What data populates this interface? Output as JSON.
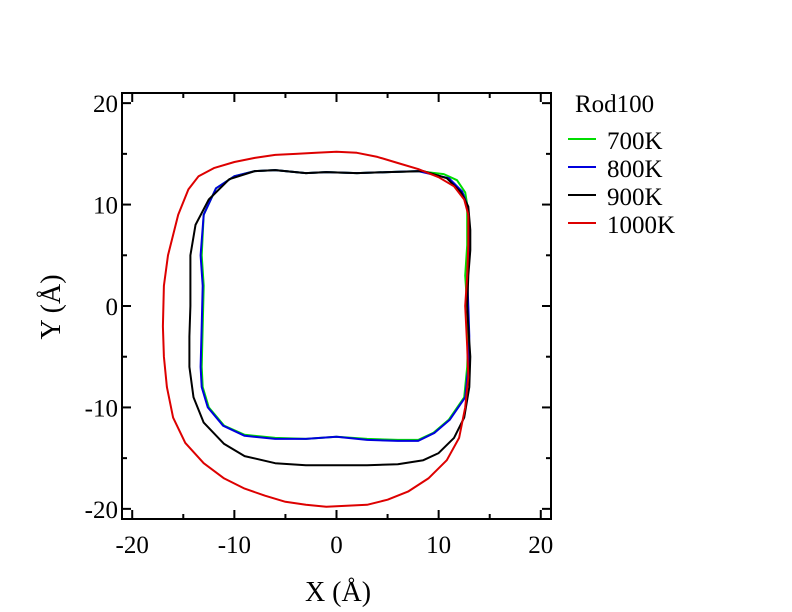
{
  "chart_data": {
    "type": "line",
    "xlabel": "X (Å)",
    "ylabel": "Y (Å)",
    "xlim": [
      -21,
      21
    ],
    "ylim": [
      -21,
      21
    ],
    "xticks": [
      -20,
      -10,
      0,
      10,
      20
    ],
    "yticks": [
      -20,
      -10,
      0,
      10,
      20
    ],
    "xtick_labels": [
      "-20",
      "-10",
      "0",
      "10",
      "20"
    ],
    "ytick_labels": [
      "-20",
      "-10",
      "0",
      "10",
      "20"
    ],
    "grid": false,
    "legend": {
      "title": "Rod100",
      "placement": "right-outside-top"
    },
    "series": [
      {
        "name": "700K",
        "color": "#00dd00",
        "points": [
          [
            12.8,
            10.0
          ],
          [
            12.6,
            11.2
          ],
          [
            11.8,
            12.4
          ],
          [
            10.5,
            13.0
          ],
          [
            8.0,
            13.3
          ],
          [
            5.0,
            13.2
          ],
          [
            2.0,
            13.1
          ],
          [
            -1.0,
            13.2
          ],
          [
            -3.0,
            13.1
          ],
          [
            -6.0,
            13.4
          ],
          [
            -8.0,
            13.3
          ],
          [
            -10.0,
            12.8
          ],
          [
            -11.8,
            11.6
          ],
          [
            -13.0,
            9.0
          ],
          [
            -13.2,
            5.0
          ],
          [
            -13.0,
            2.0
          ],
          [
            -13.1,
            -2.0
          ],
          [
            -13.2,
            -6.0
          ],
          [
            -13.1,
            -8.0
          ],
          [
            -12.5,
            -10.0
          ],
          [
            -11.0,
            -11.8
          ],
          [
            -9.0,
            -12.7
          ],
          [
            -6.0,
            -13.0
          ],
          [
            -3.0,
            -13.1
          ],
          [
            0.0,
            -12.9
          ],
          [
            3.0,
            -13.1
          ],
          [
            6.0,
            -13.2
          ],
          [
            8.0,
            -13.2
          ],
          [
            9.5,
            -12.5
          ],
          [
            11.0,
            -11.2
          ],
          [
            12.5,
            -9.0
          ],
          [
            12.8,
            -6.0
          ],
          [
            12.9,
            -3.0
          ],
          [
            12.8,
            0.0
          ],
          [
            12.6,
            3.0
          ],
          [
            12.8,
            6.0
          ],
          [
            12.8,
            10.0
          ]
        ]
      },
      {
        "name": "800K",
        "color": "#0000dd",
        "points": [
          [
            13.0,
            8.0
          ],
          [
            12.8,
            10.0
          ],
          [
            12.3,
            11.3
          ],
          [
            11.0,
            12.6
          ],
          [
            8.0,
            13.3
          ],
          [
            5.0,
            13.2
          ],
          [
            2.0,
            13.1
          ],
          [
            -1.0,
            13.2
          ],
          [
            -3.0,
            13.1
          ],
          [
            -6.0,
            13.4
          ],
          [
            -8.0,
            13.3
          ],
          [
            -10.0,
            12.8
          ],
          [
            -11.8,
            11.6
          ],
          [
            -13.0,
            9.0
          ],
          [
            -13.3,
            5.0
          ],
          [
            -13.1,
            2.0
          ],
          [
            -13.2,
            -2.0
          ],
          [
            -13.3,
            -6.0
          ],
          [
            -13.2,
            -8.0
          ],
          [
            -12.6,
            -10.0
          ],
          [
            -11.1,
            -11.8
          ],
          [
            -9.0,
            -12.8
          ],
          [
            -6.0,
            -13.1
          ],
          [
            -3.0,
            -13.1
          ],
          [
            0.0,
            -12.9
          ],
          [
            3.0,
            -13.2
          ],
          [
            6.0,
            -13.3
          ],
          [
            8.0,
            -13.3
          ],
          [
            9.6,
            -12.5
          ],
          [
            11.1,
            -11.2
          ],
          [
            12.6,
            -9.0
          ],
          [
            12.9,
            -6.0
          ],
          [
            13.0,
            -3.0
          ],
          [
            12.9,
            0.0
          ],
          [
            12.8,
            3.0
          ],
          [
            13.0,
            6.0
          ],
          [
            13.0,
            8.0
          ]
        ]
      },
      {
        "name": "900K",
        "color": "#000000",
        "points": [
          [
            13.1,
            7.5
          ],
          [
            12.9,
            9.8
          ],
          [
            12.2,
            11.2
          ],
          [
            10.8,
            12.6
          ],
          [
            8.5,
            13.3
          ],
          [
            5.0,
            13.2
          ],
          [
            2.0,
            13.1
          ],
          [
            -1.0,
            13.2
          ],
          [
            -3.0,
            13.1
          ],
          [
            -6.0,
            13.4
          ],
          [
            -8.0,
            13.3
          ],
          [
            -10.5,
            12.5
          ],
          [
            -12.5,
            10.5
          ],
          [
            -13.8,
            8.0
          ],
          [
            -14.3,
            5.0
          ],
          [
            -14.3,
            0.0
          ],
          [
            -14.4,
            -3.0
          ],
          [
            -14.4,
            -6.0
          ],
          [
            -14.0,
            -9.0
          ],
          [
            -13.0,
            -11.5
          ],
          [
            -11.0,
            -13.6
          ],
          [
            -9.0,
            -14.8
          ],
          [
            -6.0,
            -15.5
          ],
          [
            -3.0,
            -15.7
          ],
          [
            0.0,
            -15.7
          ],
          [
            3.0,
            -15.7
          ],
          [
            6.0,
            -15.6
          ],
          [
            8.5,
            -15.2
          ],
          [
            10.0,
            -14.5
          ],
          [
            11.5,
            -13.0
          ],
          [
            12.5,
            -11.0
          ],
          [
            13.0,
            -8.0
          ],
          [
            13.1,
            -5.0
          ],
          [
            12.9,
            -2.0
          ],
          [
            12.8,
            0.0
          ],
          [
            12.9,
            3.0
          ],
          [
            13.1,
            5.5
          ],
          [
            13.1,
            7.5
          ]
        ]
      },
      {
        "name": "1000K",
        "color": "#dd0000",
        "points": [
          [
            12.9,
            9.0
          ],
          [
            12.5,
            10.5
          ],
          [
            11.5,
            11.8
          ],
          [
            10.0,
            12.7
          ],
          [
            8.0,
            13.5
          ],
          [
            6.0,
            14.1
          ],
          [
            4.0,
            14.7
          ],
          [
            2.0,
            15.1
          ],
          [
            0.0,
            15.2
          ],
          [
            -2.0,
            15.1
          ],
          [
            -4.0,
            15.0
          ],
          [
            -6.0,
            14.9
          ],
          [
            -8.0,
            14.6
          ],
          [
            -10.0,
            14.2
          ],
          [
            -12.0,
            13.6
          ],
          [
            -13.5,
            12.8
          ],
          [
            -14.5,
            11.5
          ],
          [
            -15.5,
            9.0
          ],
          [
            -16.5,
            5.0
          ],
          [
            -16.9,
            2.0
          ],
          [
            -17.0,
            -2.0
          ],
          [
            -16.9,
            -5.0
          ],
          [
            -16.6,
            -8.0
          ],
          [
            -16.0,
            -11.0
          ],
          [
            -14.8,
            -13.5
          ],
          [
            -13.0,
            -15.5
          ],
          [
            -11.0,
            -17.0
          ],
          [
            -9.0,
            -18.0
          ],
          [
            -7.0,
            -18.7
          ],
          [
            -5.0,
            -19.3
          ],
          [
            -3.0,
            -19.6
          ],
          [
            -1.0,
            -19.8
          ],
          [
            1.0,
            -19.7
          ],
          [
            3.0,
            -19.6
          ],
          [
            5.0,
            -19.1
          ],
          [
            7.0,
            -18.3
          ],
          [
            9.0,
            -17.0
          ],
          [
            10.8,
            -15.2
          ],
          [
            12.0,
            -13.0
          ],
          [
            12.6,
            -10.0
          ],
          [
            12.9,
            -7.0
          ],
          [
            12.8,
            -4.0
          ],
          [
            12.6,
            0.0
          ],
          [
            12.8,
            3.0
          ],
          [
            12.9,
            6.0
          ],
          [
            12.9,
            9.0
          ]
        ]
      }
    ]
  }
}
